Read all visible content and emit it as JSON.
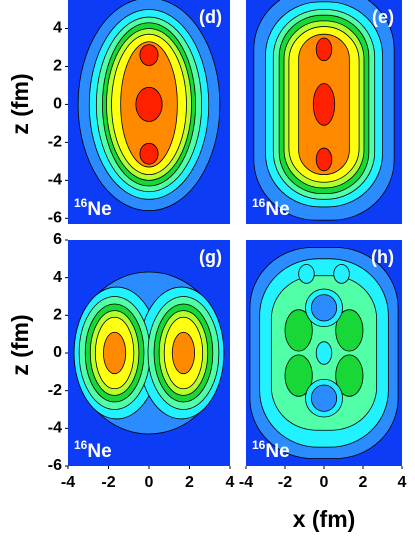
{
  "chart_data": [
    {
      "type": "contour",
      "label": "(d)",
      "nucleus_mass": "16",
      "nucleus": "Ne",
      "xlim": [
        -4,
        4
      ],
      "ylim": [
        -6.3,
        5.5
      ],
      "yticks": [
        -6,
        -4,
        -2,
        0,
        2,
        4
      ],
      "ylabel": "z (fm)"
    },
    {
      "type": "contour",
      "label": "(e)",
      "nucleus_mass": "16",
      "nucleus": "Ne",
      "xlim": [
        -4,
        4
      ],
      "ylim": [
        -6.3,
        5.5
      ]
    },
    {
      "type": "contour",
      "label": "(g)",
      "nucleus_mass": "16",
      "nucleus": "Ne",
      "xlim": [
        -4,
        4
      ],
      "ylim": [
        -6,
        6
      ],
      "yticks": [
        -6,
        -4,
        -2,
        0,
        2,
        4,
        6
      ],
      "xticks": [
        -4,
        -2,
        0,
        2,
        4
      ],
      "ylabel": "z (fm)"
    },
    {
      "type": "contour",
      "label": "(h)",
      "nucleus_mass": "16",
      "nucleus": "Ne",
      "xlim": [
        -4,
        4
      ],
      "ylim": [
        -6,
        6
      ],
      "xticks": [
        -4,
        -2,
        0,
        2,
        4
      ],
      "xlabel": "x (fm)"
    }
  ]
}
